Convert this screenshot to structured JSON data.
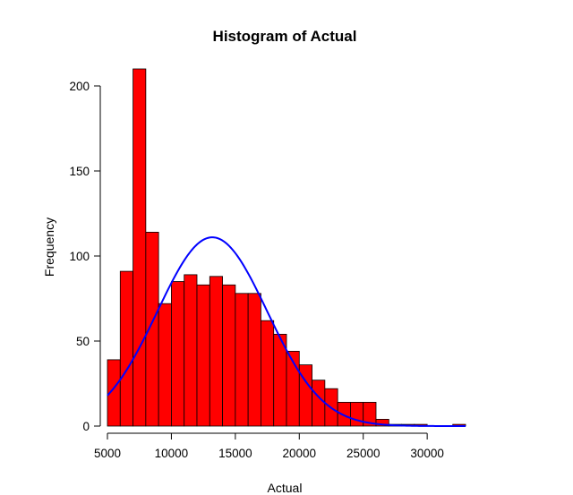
{
  "chart_data": {
    "type": "histogram",
    "title": "Histogram of Actual",
    "xlabel": "Actual",
    "ylabel": "Frequency",
    "xlim": [
      5000,
      33000
    ],
    "ylim": [
      0,
      210
    ],
    "x_ticks": [
      5000,
      10000,
      15000,
      20000,
      25000,
      30000
    ],
    "y_ticks": [
      0,
      50,
      100,
      150,
      200
    ],
    "bin_width": 1000,
    "bins": [
      {
        "start": 5000,
        "end": 6000,
        "count": 39
      },
      {
        "start": 6000,
        "end": 7000,
        "count": 91
      },
      {
        "start": 7000,
        "end": 8000,
        "count": 210
      },
      {
        "start": 8000,
        "end": 9000,
        "count": 114
      },
      {
        "start": 9000,
        "end": 10000,
        "count": 72
      },
      {
        "start": 10000,
        "end": 11000,
        "count": 85
      },
      {
        "start": 11000,
        "end": 12000,
        "count": 89
      },
      {
        "start": 12000,
        "end": 13000,
        "count": 83
      },
      {
        "start": 13000,
        "end": 14000,
        "count": 88
      },
      {
        "start": 14000,
        "end": 15000,
        "count": 83
      },
      {
        "start": 15000,
        "end": 16000,
        "count": 78
      },
      {
        "start": 16000,
        "end": 17000,
        "count": 78
      },
      {
        "start": 17000,
        "end": 18000,
        "count": 62
      },
      {
        "start": 18000,
        "end": 19000,
        "count": 54
      },
      {
        "start": 19000,
        "end": 20000,
        "count": 44
      },
      {
        "start": 20000,
        "end": 21000,
        "count": 36
      },
      {
        "start": 21000,
        "end": 22000,
        "count": 27
      },
      {
        "start": 22000,
        "end": 23000,
        "count": 22
      },
      {
        "start": 23000,
        "end": 24000,
        "count": 14
      },
      {
        "start": 24000,
        "end": 25000,
        "count": 14
      },
      {
        "start": 25000,
        "end": 26000,
        "count": 14
      },
      {
        "start": 26000,
        "end": 27000,
        "count": 4
      },
      {
        "start": 27000,
        "end": 28000,
        "count": 1
      },
      {
        "start": 28000,
        "end": 29000,
        "count": 1
      },
      {
        "start": 29000,
        "end": 30000,
        "count": 1
      },
      {
        "start": 30000,
        "end": 31000,
        "count": 0
      },
      {
        "start": 31000,
        "end": 32000,
        "count": 0
      },
      {
        "start": 32000,
        "end": 33000,
        "count": 1
      }
    ],
    "normal_curve": {
      "mean": 13200,
      "sd": 4300,
      "peak_frequency": 111,
      "x_range": [
        5000,
        33000
      ]
    },
    "grid": false,
    "colors": {
      "bar_fill": "#ff0000",
      "bar_stroke": "#000000",
      "curve": "#0000ff"
    }
  }
}
